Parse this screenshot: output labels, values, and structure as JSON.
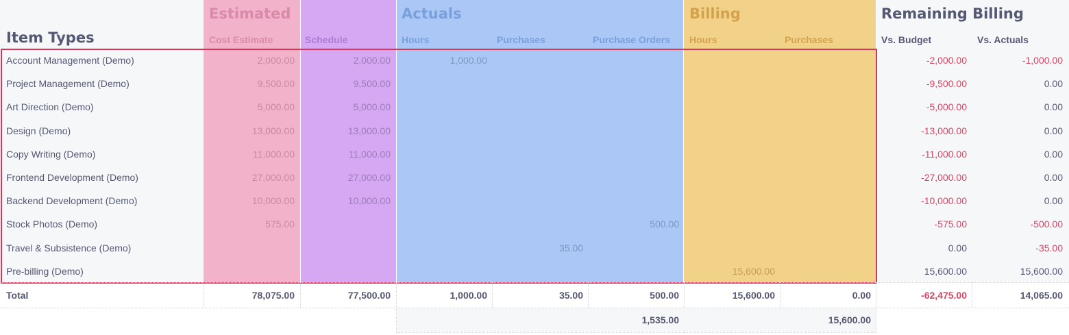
{
  "colors": {
    "estimated": "#f2b3ca",
    "schedule": "#d6a8f3",
    "actuals": "#abc7f5",
    "billing": "#f2d189",
    "left_panel": "#f6f7f9",
    "remaining_panel": "#f6f7f9",
    "selection_border": "#d8375b",
    "negative": "#d84463"
  },
  "headers": {
    "item_types": "Item Types",
    "estimated": "Estimated",
    "actuals": "Actuals",
    "billing": "Billing",
    "remaining_billing": "Remaining Billing"
  },
  "subheaders": {
    "cost_estimate": "Cost Estimate",
    "schedule": "Schedule",
    "actual_hours": "Hours",
    "actual_purchases": "Purchases",
    "purchase_orders": "Purchase Orders",
    "billing_hours": "Hours",
    "billing_purchases": "Purchases",
    "vs_budget": "Vs. Budget",
    "vs_actuals": "Vs. Actuals"
  },
  "rows": [
    {
      "label": "Account Management (Demo)",
      "cost_estimate": "2,000.00",
      "schedule": "2,000.00",
      "actual_hours": "1,000.00",
      "actual_purchases": "",
      "purchase_orders": "",
      "billing_hours": "",
      "billing_purchases": "",
      "vs_budget": "-2,000.00",
      "vs_actuals": "-1,000.00"
    },
    {
      "label": "Project Management (Demo)",
      "cost_estimate": "9,500.00",
      "schedule": "9,500.00",
      "actual_hours": "",
      "actual_purchases": "",
      "purchase_orders": "",
      "billing_hours": "",
      "billing_purchases": "",
      "vs_budget": "-9,500.00",
      "vs_actuals": "0.00"
    },
    {
      "label": "Art Direction (Demo)",
      "cost_estimate": "5,000.00",
      "schedule": "5,000.00",
      "actual_hours": "",
      "actual_purchases": "",
      "purchase_orders": "",
      "billing_hours": "",
      "billing_purchases": "",
      "vs_budget": "-5,000.00",
      "vs_actuals": "0.00"
    },
    {
      "label": "Design (Demo)",
      "cost_estimate": "13,000.00",
      "schedule": "13,000.00",
      "actual_hours": "",
      "actual_purchases": "",
      "purchase_orders": "",
      "billing_hours": "",
      "billing_purchases": "",
      "vs_budget": "-13,000.00",
      "vs_actuals": "0.00"
    },
    {
      "label": "Copy Writing (Demo)",
      "cost_estimate": "11,000.00",
      "schedule": "11,000.00",
      "actual_hours": "",
      "actual_purchases": "",
      "purchase_orders": "",
      "billing_hours": "",
      "billing_purchases": "",
      "vs_budget": "-11,000.00",
      "vs_actuals": "0.00"
    },
    {
      "label": "Frontend Development (Demo)",
      "cost_estimate": "27,000.00",
      "schedule": "27,000.00",
      "actual_hours": "",
      "actual_purchases": "",
      "purchase_orders": "",
      "billing_hours": "",
      "billing_purchases": "",
      "vs_budget": "-27,000.00",
      "vs_actuals": "0.00"
    },
    {
      "label": "Backend Development (Demo)",
      "cost_estimate": "10,000.00",
      "schedule": "10,000.00",
      "actual_hours": "",
      "actual_purchases": "",
      "purchase_orders": "",
      "billing_hours": "",
      "billing_purchases": "",
      "vs_budget": "-10,000.00",
      "vs_actuals": "0.00"
    },
    {
      "label": "Stock Photos (Demo)",
      "cost_estimate": "575.00",
      "schedule": "",
      "actual_hours": "",
      "actual_purchases": "",
      "purchase_orders": "500.00",
      "billing_hours": "",
      "billing_purchases": "",
      "vs_budget": "-575.00",
      "vs_actuals": "-500.00"
    },
    {
      "label": "Travel & Subsistence (Demo)",
      "cost_estimate": "",
      "schedule": "",
      "actual_hours": "",
      "actual_purchases": "35.00",
      "purchase_orders": "",
      "billing_hours": "",
      "billing_purchases": "",
      "vs_budget": "0.00",
      "vs_actuals": "-35.00"
    },
    {
      "label": "Pre-billing (Demo)",
      "cost_estimate": "",
      "schedule": "",
      "actual_hours": "",
      "actual_purchases": "",
      "purchase_orders": "",
      "billing_hours": "15,600.00",
      "billing_purchases": "",
      "vs_budget": "15,600.00",
      "vs_actuals": "15,600.00"
    }
  ],
  "totals": {
    "label": "Total",
    "cost_estimate": "78,075.00",
    "schedule": "77,500.00",
    "actual_hours": "1,000.00",
    "actual_purchases": "35.00",
    "purchase_orders": "500.00",
    "billing_hours": "15,600.00",
    "billing_purchases": "0.00",
    "vs_budget": "-62,475.00",
    "vs_actuals": "14,065.00"
  },
  "subtotals": {
    "actuals": "1,535.00",
    "billing": "15,600.00"
  }
}
